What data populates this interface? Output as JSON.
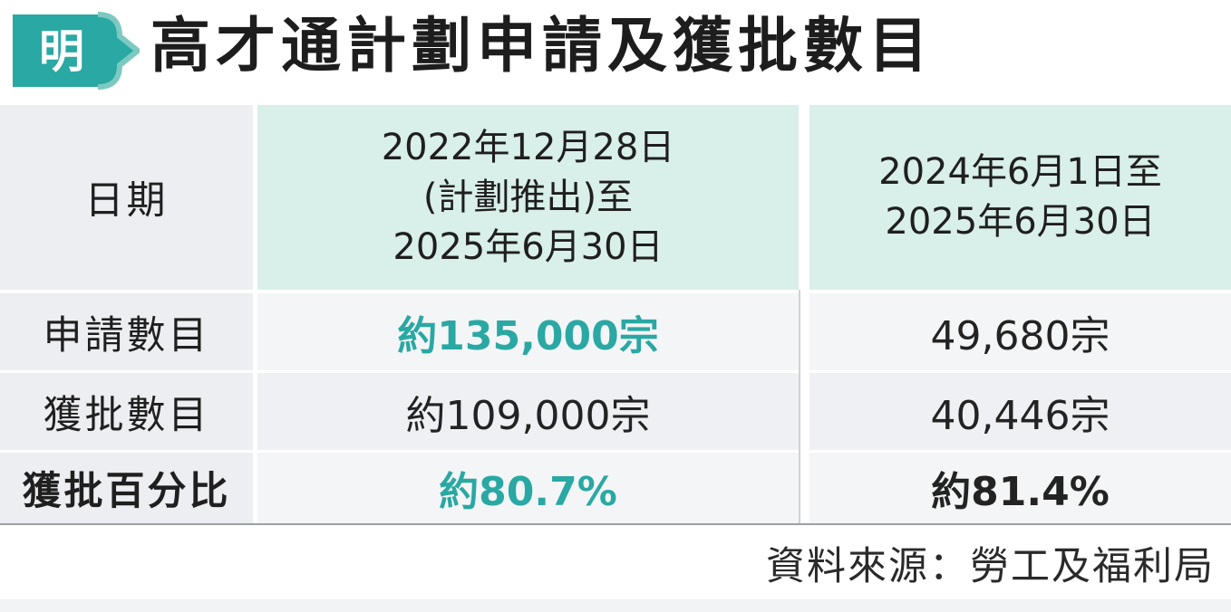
{
  "title": "高才通計劃申請及獲批數目",
  "logo": {
    "char": "明",
    "icon": "ming-pao-logo-icon",
    "color": "#2aa8a3"
  },
  "table": {
    "header": {
      "label": "日期",
      "col1": "2022年12月28日\n(計劃推出)至\n2025年6月30日",
      "col2": "2024年6月1日至\n2025年6月30日"
    },
    "rows": [
      {
        "label": "申請數目",
        "col1": "約135,000宗",
        "col2": "49,680宗"
      },
      {
        "label": "獲批數目",
        "col1": "約109,000宗",
        "col2": "40,446宗"
      },
      {
        "label": "獲批百分比",
        "col1": "約80.7%",
        "col2": "約81.4%"
      }
    ]
  },
  "source": "資料來源：勞工及福利局",
  "colors": {
    "accent": "#2aa8a3",
    "header_fill": "#d9efe9",
    "label_fill": "#eceef1"
  }
}
